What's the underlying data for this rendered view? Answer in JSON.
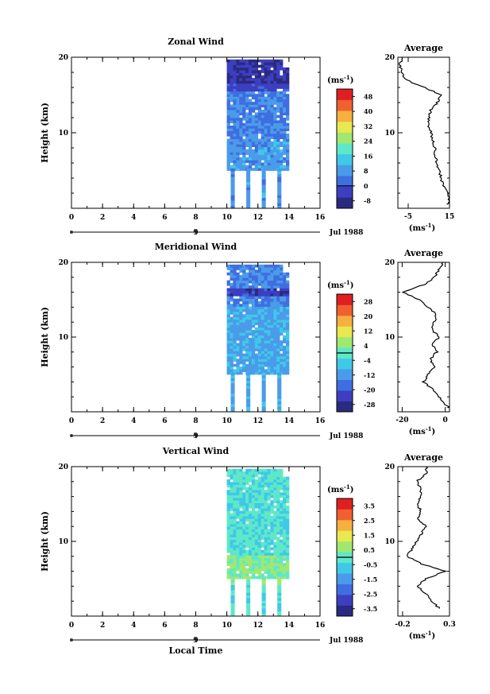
{
  "panels": [
    {
      "title": "Zonal Wind",
      "ylabel": "Height (km)",
      "unit": "(ms",
      "unit_exp": "-1",
      "cb_ticks": [
        48,
        40,
        32,
        24,
        16,
        8,
        0,
        -8
      ],
      "cb_range": [
        -12,
        52
      ],
      "avg_title": "Average",
      "avg_xticks": [
        -5,
        15
      ],
      "avg_xrange": [
        -10,
        15
      ],
      "avg_unit": "(ms",
      "avg_unit_exp": "-1",
      "date_label": "Jul 1988"
    },
    {
      "title": "Meridional Wind",
      "ylabel": "Height (km)",
      "unit": "(ms",
      "unit_exp": "-1",
      "cb_ticks": [
        28,
        20,
        12,
        4,
        -4,
        -12,
        -20,
        -28
      ],
      "cb_range": [
        -32,
        32
      ],
      "avg_title": "Average",
      "avg_xticks": [
        -20,
        0
      ],
      "avg_xrange": [
        -22,
        2
      ],
      "avg_unit": "(ms",
      "avg_unit_exp": "-1",
      "date_label": "Jul 1988"
    },
    {
      "title": "Vertical Wind",
      "ylabel": "Height (km)",
      "unit": "(ms",
      "unit_exp": "-1",
      "cb_ticks": [
        3.5,
        2.5,
        1.5,
        0.5,
        -0.5,
        -1.5,
        -2.5,
        -3.5
      ],
      "cb_range": [
        -4,
        4
      ],
      "avg_title": "Average",
      "avg_xticks": [
        -0.2,
        0.3
      ],
      "avg_xrange": [
        -0.25,
        0.3
      ],
      "avg_unit": "(ms",
      "avg_unit_exp": "-1",
      "date_label": "Jul 1988"
    }
  ],
  "chart_data": {
    "type": "heatmap",
    "xlabel": "Local Time",
    "x_ticks": [
      0,
      2,
      4,
      6,
      8,
      10,
      12,
      14,
      16
    ],
    "xlim": [
      0,
      16
    ],
    "y_ticks": [
      10,
      20
    ],
    "ylim": [
      0,
      20
    ],
    "day_label": "9",
    "colorscale": [
      "#2a2a80",
      "#3d3fc0",
      "#3f6ee0",
      "#4a9bea",
      "#40c8e8",
      "#5fe8c8",
      "#a0e870",
      "#e8e850",
      "#f5b040",
      "#f06030",
      "#e02020"
    ],
    "averages": [
      {
        "name": "Zonal Wind",
        "height": [
          0.5,
          1,
          2,
          3,
          4,
          5,
          6,
          7,
          8,
          9,
          10,
          11,
          12,
          13,
          14,
          15,
          16,
          17,
          18,
          19,
          20
        ],
        "value": [
          14,
          15,
          14,
          12,
          11,
          10,
          9,
          8,
          8,
          7,
          6,
          5,
          5,
          6,
          9,
          11,
          3,
          -6,
          -8,
          -9,
          -8
        ]
      },
      {
        "name": "Meridional Wind",
        "height": [
          0.5,
          1,
          2,
          3,
          4,
          5,
          6,
          7,
          8,
          9,
          10,
          11,
          12,
          13,
          14,
          15,
          16,
          17,
          18,
          19,
          20
        ],
        "value": [
          2,
          0,
          -3,
          -6,
          -10,
          -8,
          -5,
          -7,
          -4,
          -6,
          -3,
          -6,
          -5,
          -4,
          -8,
          -12,
          -20,
          -10,
          -5,
          -3,
          -1
        ]
      },
      {
        "name": "Vertical Wind",
        "height": [
          1,
          2,
          3,
          4,
          5,
          6,
          7,
          8,
          9,
          10,
          11,
          12,
          13,
          14,
          15,
          16,
          17,
          18,
          19,
          20
        ],
        "value": [
          0.2,
          0.1,
          0.05,
          -0.05,
          0.05,
          0.25,
          0.0,
          -0.15,
          -0.1,
          -0.05,
          0.0,
          0.05,
          -0.05,
          0.0,
          -0.05,
          0.0,
          0.0,
          -0.05,
          0.05,
          0.05
        ]
      }
    ],
    "data_coverage": {
      "x_range": [
        10,
        14
      ],
      "continuous_from_km": 5,
      "lower_columns": [
        10.25,
        11.25,
        12.25,
        13.25
      ]
    }
  }
}
